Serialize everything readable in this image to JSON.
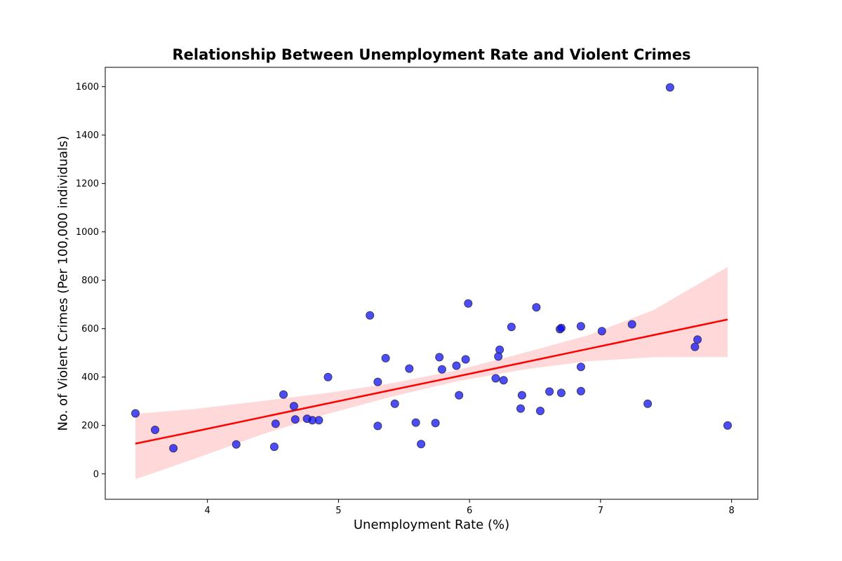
{
  "chart_data": {
    "type": "scatter",
    "title": "Relationship Between Unemployment Rate and Violent Crimes",
    "xlabel": "Unemployment Rate (%)",
    "ylabel": "No. of Violent Crimes (Per 100,000 individuals)",
    "xlim": [
      3.22,
      8.2
    ],
    "ylim": [
      -105,
      1680
    ],
    "xticks": [
      4,
      5,
      6,
      7,
      8
    ],
    "yticks": [
      0,
      200,
      400,
      600,
      800,
      1000,
      1200,
      1400,
      1600
    ],
    "grid": false,
    "points": [
      {
        "x": 3.45,
        "y": 250
      },
      {
        "x": 3.6,
        "y": 182
      },
      {
        "x": 3.74,
        "y": 106
      },
      {
        "x": 4.22,
        "y": 122
      },
      {
        "x": 4.51,
        "y": 112
      },
      {
        "x": 4.52,
        "y": 207
      },
      {
        "x": 4.58,
        "y": 328
      },
      {
        "x": 4.66,
        "y": 280
      },
      {
        "x": 4.67,
        "y": 225
      },
      {
        "x": 4.76,
        "y": 228
      },
      {
        "x": 4.8,
        "y": 222
      },
      {
        "x": 4.85,
        "y": 222
      },
      {
        "x": 4.92,
        "y": 400
      },
      {
        "x": 5.24,
        "y": 655
      },
      {
        "x": 5.3,
        "y": 380
      },
      {
        "x": 5.3,
        "y": 198
      },
      {
        "x": 5.36,
        "y": 478
      },
      {
        "x": 5.43,
        "y": 290
      },
      {
        "x": 5.54,
        "y": 435
      },
      {
        "x": 5.59,
        "y": 212
      },
      {
        "x": 5.63,
        "y": 123
      },
      {
        "x": 5.74,
        "y": 210
      },
      {
        "x": 5.77,
        "y": 482
      },
      {
        "x": 5.79,
        "y": 432
      },
      {
        "x": 5.9,
        "y": 447
      },
      {
        "x": 5.92,
        "y": 325
      },
      {
        "x": 5.97,
        "y": 473
      },
      {
        "x": 5.99,
        "y": 704
      },
      {
        "x": 6.2,
        "y": 395
      },
      {
        "x": 6.22,
        "y": 485
      },
      {
        "x": 6.23,
        "y": 513
      },
      {
        "x": 6.26,
        "y": 387
      },
      {
        "x": 6.32,
        "y": 607
      },
      {
        "x": 6.39,
        "y": 270
      },
      {
        "x": 6.4,
        "y": 325
      },
      {
        "x": 6.51,
        "y": 688
      },
      {
        "x": 6.54,
        "y": 260
      },
      {
        "x": 6.61,
        "y": 340
      },
      {
        "x": 6.69,
        "y": 598
      },
      {
        "x": 6.7,
        "y": 603
      },
      {
        "x": 6.7,
        "y": 335
      },
      {
        "x": 6.85,
        "y": 610
      },
      {
        "x": 6.85,
        "y": 442
      },
      {
        "x": 6.85,
        "y": 342
      },
      {
        "x": 7.01,
        "y": 590
      },
      {
        "x": 7.24,
        "y": 618
      },
      {
        "x": 7.36,
        "y": 290
      },
      {
        "x": 7.53,
        "y": 1597
      },
      {
        "x": 7.72,
        "y": 525
      },
      {
        "x": 7.74,
        "y": 555
      },
      {
        "x": 7.97,
        "y": 200
      }
    ],
    "regression": {
      "x": [
        3.45,
        3.9,
        4.4,
        4.9,
        5.4,
        5.9,
        6.4,
        6.9,
        7.4,
        7.97
      ],
      "y": [
        125,
        175,
        232,
        289,
        346,
        402,
        459,
        516,
        573,
        638
      ],
      "ci_lower": [
        -22,
        62,
        160,
        245,
        318,
        382,
        430,
        465,
        482,
        483
      ],
      "ci_upper": [
        248,
        268,
        300,
        333,
        374,
        428,
        498,
        572,
        676,
        855
      ]
    },
    "colors": {
      "point_fill": "#0000ff",
      "point_fill_opacity": 0.7,
      "point_edge": "#3a3a5a",
      "line": "#ff0000",
      "band": "#ffcccc",
      "band_opacity": 0.75
    }
  }
}
